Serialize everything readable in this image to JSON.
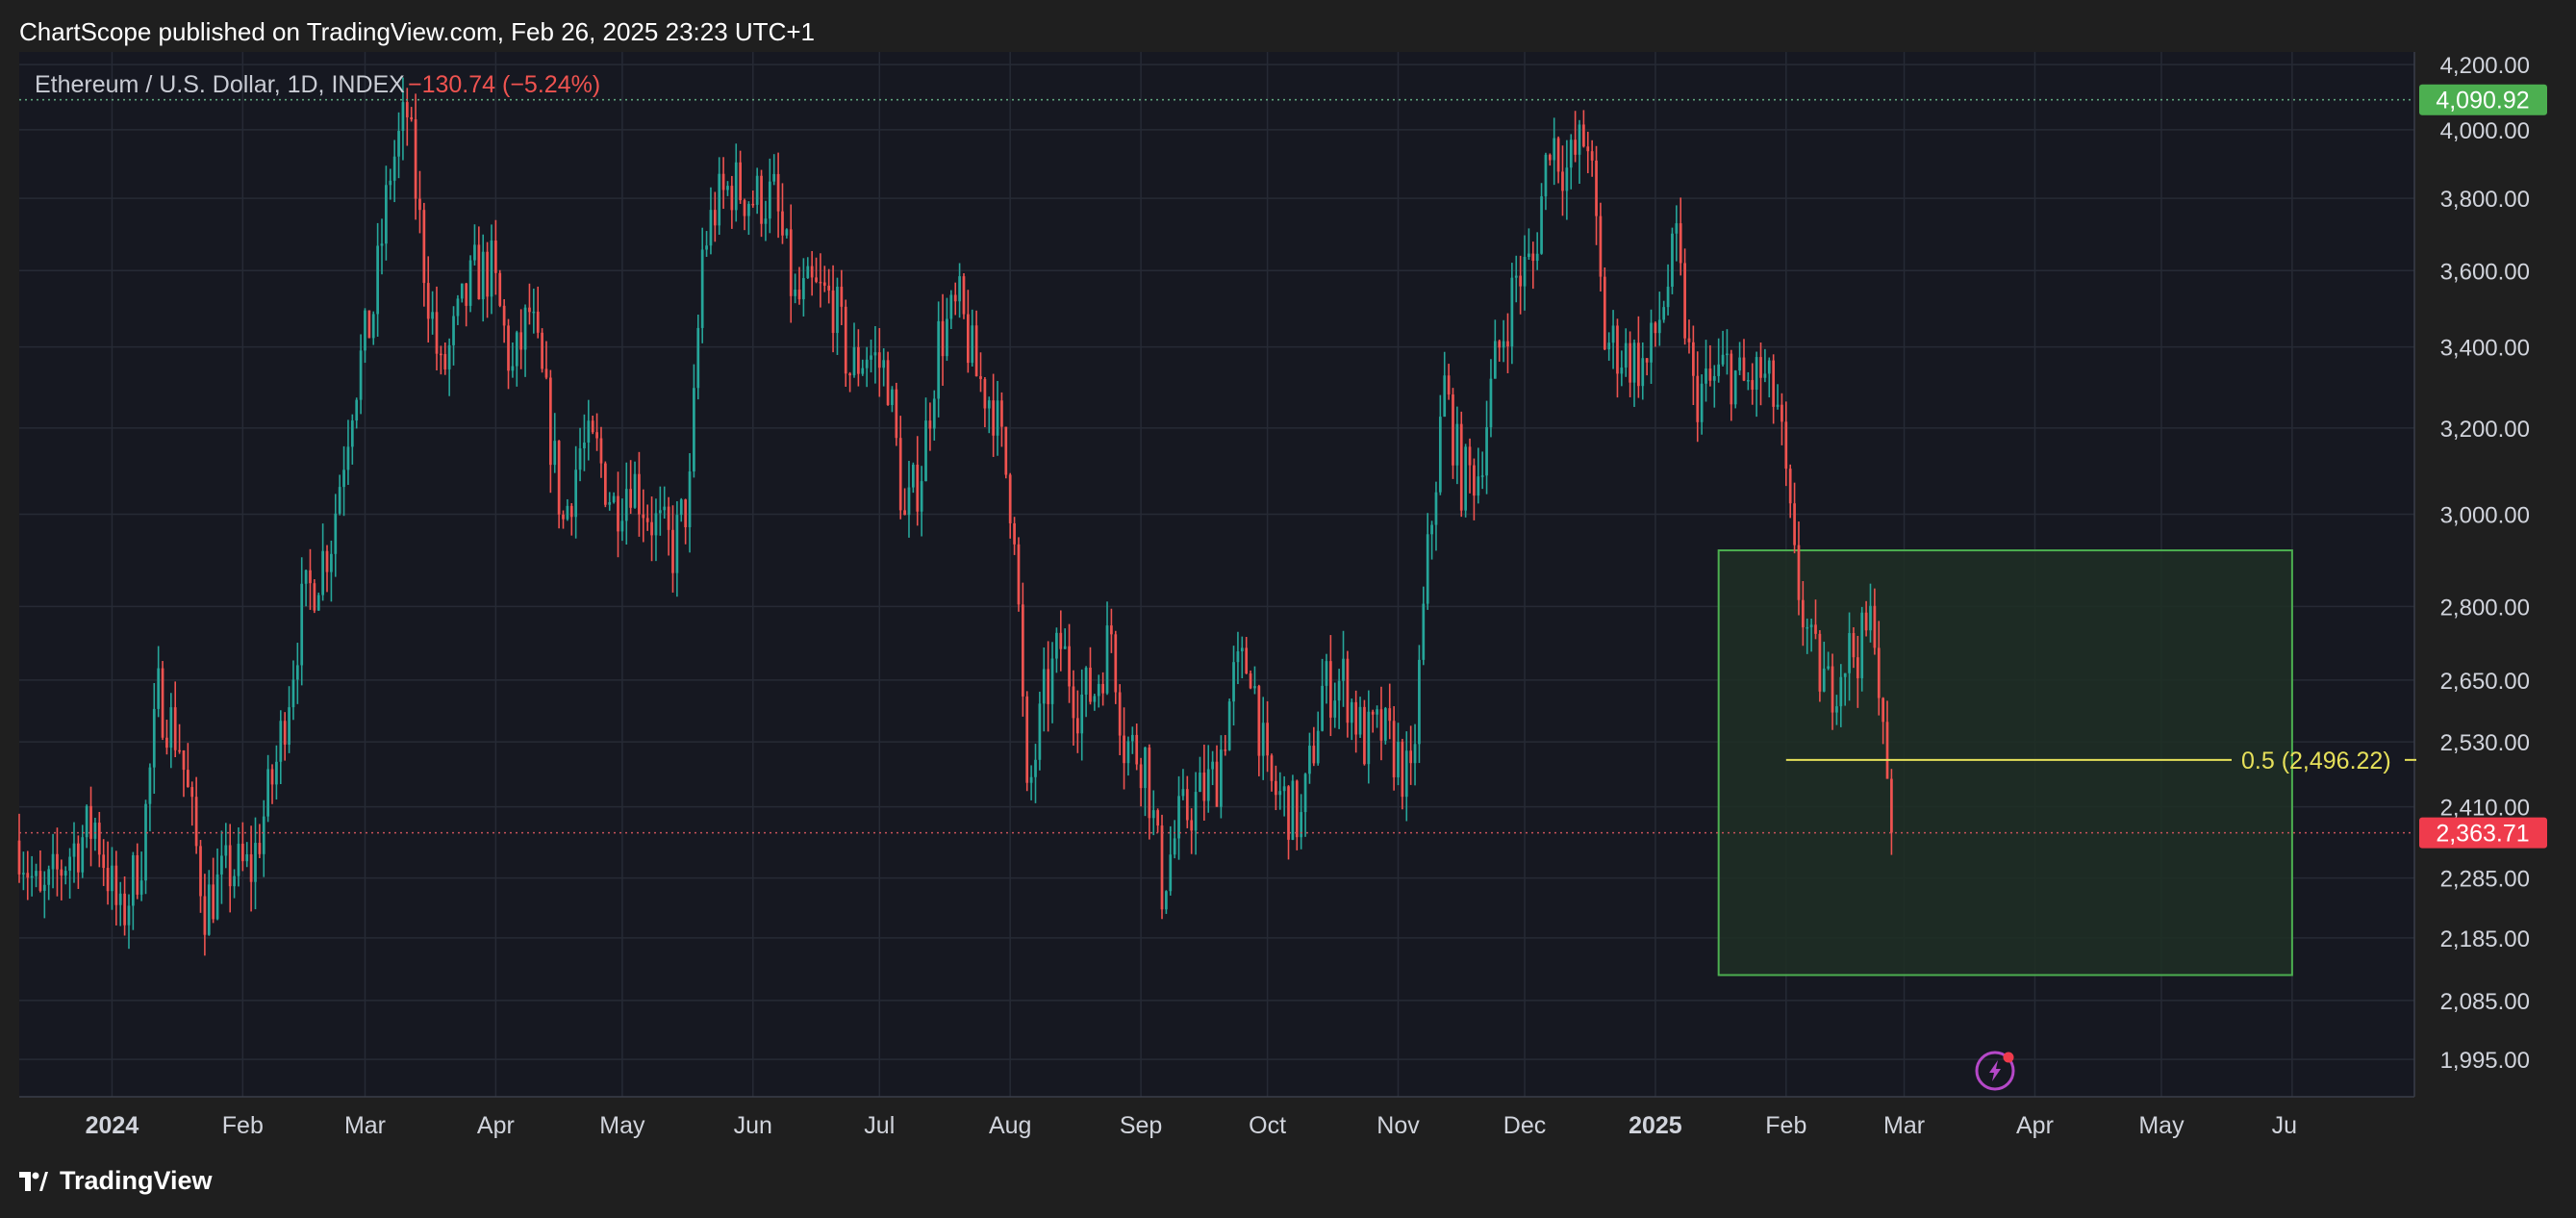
{
  "header": {
    "published": "ChartScope published on TradingView.com, Feb 26, 2025 23:23 UTC+1"
  },
  "legend": {
    "symbol": "Ethereum / U.S. Dollar, 1D, INDEX",
    "change": "−130.74 (−5.24%)"
  },
  "footer": {
    "brand": "TradingView",
    "logo_icon": "tradingview-logo-icon"
  },
  "colors": {
    "background": "#1f1f1f",
    "pane": "#161821",
    "grid": "#262a35",
    "up": "#26a69a",
    "down": "#ef5350",
    "box_border": "#4caf50",
    "box_fill": "#1e2f24",
    "fib_line": "#e6e05a",
    "high_badge": "#4caf50",
    "last_badge": "#ef3b4c"
  },
  "chart_data": {
    "type": "candlestick",
    "symbol": "Ethereum / U.S. Dollar",
    "interval": "1D",
    "scale": "log",
    "ylim": [
      1940,
      4240
    ],
    "xlim": [
      "2023-12-10",
      "2025-06-30"
    ],
    "y_ticks": [
      "4,200.00",
      "4,000.00",
      "3,800.00",
      "3,600.00",
      "3,400.00",
      "3,200.00",
      "3,000.00",
      "2,800.00",
      "2,650.00",
      "2,530.00",
      "2,410.00",
      "2,285.00",
      "2,185.00",
      "2,085.00",
      "1,995.00"
    ],
    "x_ticks": [
      {
        "date": "2024-01-01",
        "label": "2024",
        "bold": true
      },
      {
        "date": "2024-02-01",
        "label": "Feb"
      },
      {
        "date": "2024-03-01",
        "label": "Mar"
      },
      {
        "date": "2024-04-01",
        "label": "Apr"
      },
      {
        "date": "2024-05-01",
        "label": "May"
      },
      {
        "date": "2024-06-01",
        "label": "Jun"
      },
      {
        "date": "2024-07-01",
        "label": "Jul"
      },
      {
        "date": "2024-08-01",
        "label": "Aug"
      },
      {
        "date": "2024-09-01",
        "label": "Sep"
      },
      {
        "date": "2024-10-01",
        "label": "Oct"
      },
      {
        "date": "2024-11-01",
        "label": "Nov"
      },
      {
        "date": "2024-12-01",
        "label": "Dec"
      },
      {
        "date": "2025-01-01",
        "label": "2025",
        "bold": true
      },
      {
        "date": "2025-02-01",
        "label": "Feb"
      },
      {
        "date": "2025-03-01",
        "label": "Mar"
      },
      {
        "date": "2025-04-01",
        "label": "Apr"
      },
      {
        "date": "2025-05-01",
        "label": "May"
      },
      {
        "date": "2025-06-01",
        "label": "Ju"
      }
    ],
    "closes": [
      [
        "2023-12-10",
        2350
      ],
      [
        "2023-12-15",
        2240
      ],
      [
        "2023-12-22",
        2330
      ],
      [
        "2023-12-28",
        2380
      ],
      [
        "2024-01-03",
        2210
      ],
      [
        "2024-01-08",
        2330
      ],
      [
        "2024-01-12",
        2620
      ],
      [
        "2024-01-17",
        2530
      ],
      [
        "2024-01-23",
        2240
      ],
      [
        "2024-01-29",
        2300
      ],
      [
        "2024-02-03",
        2300
      ],
      [
        "2024-02-09",
        2490
      ],
      [
        "2024-02-15",
        2790
      ],
      [
        "2024-02-22",
        2950
      ],
      [
        "2024-02-27",
        3280
      ],
      [
        "2024-03-03",
        3500
      ],
      [
        "2024-03-07",
        3880
      ],
      [
        "2024-03-11",
        4050
      ],
      [
        "2024-03-15",
        3620
      ],
      [
        "2024-03-19",
        3320
      ],
      [
        "2024-03-23",
        3460
      ],
      [
        "2024-03-27",
        3590
      ],
      [
        "2024-03-31",
        3600
      ],
      [
        "2024-04-05",
        3330
      ],
      [
        "2024-04-09",
        3490
      ],
      [
        "2024-04-13",
        3250
      ],
      [
        "2024-04-17",
        2980
      ],
      [
        "2024-04-21",
        3150
      ],
      [
        "2024-04-25",
        3140
      ],
      [
        "2024-04-29",
        3020
      ],
      [
        "2024-05-03",
        3090
      ],
      [
        "2024-05-08",
        2990
      ],
      [
        "2024-05-13",
        2920
      ],
      [
        "2024-05-17",
        3050
      ],
      [
        "2024-05-20",
        3650
      ],
      [
        "2024-05-23",
        3770
      ],
      [
        "2024-05-27",
        3840
      ],
      [
        "2024-06-01",
        3800
      ],
      [
        "2024-06-06",
        3800
      ],
      [
        "2024-06-11",
        3510
      ],
      [
        "2024-06-15",
        3540
      ],
      [
        "2024-06-20",
        3520
      ],
      [
        "2024-06-24",
        3340
      ],
      [
        "2024-06-28",
        3390
      ],
      [
        "2024-07-03",
        3330
      ],
      [
        "2024-07-07",
        2980
      ],
      [
        "2024-07-11",
        3110
      ],
      [
        "2024-07-15",
        3420
      ],
      [
        "2024-07-20",
        3500
      ],
      [
        "2024-07-24",
        3330
      ],
      [
        "2024-07-28",
        3260
      ],
      [
        "2024-08-02",
        2990
      ],
      [
        "2024-08-05",
        2410
      ],
      [
        "2024-08-09",
        2610
      ],
      [
        "2024-08-13",
        2720
      ],
      [
        "2024-08-17",
        2610
      ],
      [
        "2024-08-21",
        2630
      ],
      [
        "2024-08-25",
        2750
      ],
      [
        "2024-08-28",
        2530
      ],
      [
        "2024-09-02",
        2500
      ],
      [
        "2024-09-06",
        2270
      ],
      [
        "2024-09-10",
        2380
      ],
      [
        "2024-09-14",
        2420
      ],
      [
        "2024-09-19",
        2470
      ],
      [
        "2024-09-23",
        2650
      ],
      [
        "2024-09-27",
        2690
      ],
      [
        "2024-10-01",
        2450
      ],
      [
        "2024-10-05",
        2420
      ],
      [
        "2024-10-09",
        2380
      ],
      [
        "2024-10-14",
        2630
      ],
      [
        "2024-10-19",
        2650
      ],
      [
        "2024-10-24",
        2530
      ],
      [
        "2024-10-28",
        2550
      ],
      [
        "2024-11-01",
        2500
      ],
      [
        "2024-11-04",
        2440
      ],
      [
        "2024-11-08",
        2900
      ],
      [
        "2024-11-12",
        3300
      ],
      [
        "2024-11-16",
        3080
      ],
      [
        "2024-11-20",
        3100
      ],
      [
        "2024-11-24",
        3350
      ],
      [
        "2024-11-29",
        3580
      ],
      [
        "2024-12-03",
        3620
      ],
      [
        "2024-12-07",
        3990
      ],
      [
        "2024-12-11",
        3880
      ],
      [
        "2024-12-16",
        3990
      ],
      [
        "2024-12-20",
        3420
      ],
      [
        "2024-12-25",
        3380
      ],
      [
        "2024-12-30",
        3350
      ],
      [
        "2025-01-06",
        3660
      ],
      [
        "2025-01-10",
        3280
      ],
      [
        "2025-01-14",
        3300
      ],
      [
        "2025-01-18",
        3350
      ],
      [
        "2025-01-22",
        3300
      ],
      [
        "2025-01-26",
        3330
      ],
      [
        "2025-01-30",
        3250
      ],
      [
        "2025-02-03",
        2880
      ],
      [
        "2025-02-07",
        2700
      ],
      [
        "2025-02-11",
        2630
      ],
      [
        "2025-02-15",
        2700
      ],
      [
        "2025-02-19",
        2720
      ],
      [
        "2025-02-22",
        2780
      ],
      [
        "2025-02-24",
        2520
      ],
      [
        "2025-02-26",
        2364
      ]
    ],
    "annotations": [
      {
        "type": "rectangle",
        "from": "2025-01-16",
        "to": "2025-06-01",
        "y_top": 2920,
        "y_bottom": 2125
      },
      {
        "type": "fib_level",
        "label": "0.5 (2,496.22)",
        "value": 2496.22,
        "from": "2025-02-01",
        "to": "2025-05-25"
      },
      {
        "type": "price_line",
        "badge": "4,090.92",
        "value": 4090.92,
        "style": "dotted-green"
      },
      {
        "type": "price_line",
        "badge": "2,363.71",
        "value": 2363.71,
        "style": "dotted-red"
      }
    ]
  }
}
